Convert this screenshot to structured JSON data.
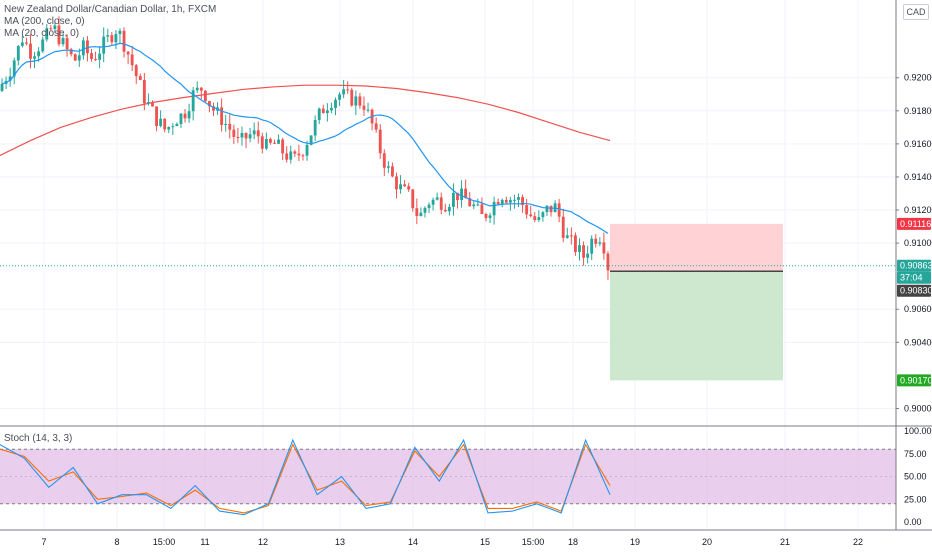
{
  "header": {
    "symbol_title": "New Zealand Dollar/Canadian Dollar, 1h, FXCM",
    "ma200_label": "MA (200, close, 0)",
    "ma20_label": "MA (20, close, 0)",
    "currency_button": "CAD"
  },
  "stoch": {
    "label": "Stoch (14, 3, 3)",
    "ticks": [
      "100.00",
      "75.00",
      "50.00",
      "25.00",
      "0.00"
    ]
  },
  "colors": {
    "up": "#26a69a",
    "down": "#ef5350",
    "ma200": "#ef5350",
    "ma20": "#2196f3",
    "stoch_k": "#2196f3",
    "stoch_d": "#ff6d00",
    "stoch_band": "#e1bee7",
    "stop_zone": "#ffcdd2",
    "target_zone": "#c8e6c9",
    "current_price": "#26a69a",
    "entry_price": "#444444",
    "stop_tag": "#f23645",
    "target_tag": "#22ab22"
  },
  "chart_data": {
    "type": "candlestick",
    "symbol": "NZDCAD",
    "timeframe": "1h",
    "y_ticks": [
      "0.92000",
      "0.91800",
      "0.91600",
      "0.91400",
      "0.91200",
      "0.91000",
      "0.90600",
      "0.90400",
      "0.90000"
    ],
    "x_ticks": [
      "7",
      "8",
      "15:00",
      "11",
      "12",
      "13",
      "14",
      "15",
      "15:00",
      "18",
      "19",
      "20",
      "21",
      "22"
    ],
    "price_tags": {
      "stop": "0.91116",
      "current": "0.90863",
      "countdown": "37:04",
      "entry": "0.90830",
      "target": "0.90170"
    },
    "trade": {
      "direction": "short",
      "entry": 0.9083,
      "stop_loss": 0.91116,
      "take_profit": 0.9017
    },
    "ma200_points": [
      [
        0.0,
        0.9153
      ],
      [
        0.05,
        0.9162
      ],
      [
        0.1,
        0.917
      ],
      [
        0.15,
        0.9176
      ],
      [
        0.2,
        0.9181
      ],
      [
        0.25,
        0.9185
      ],
      [
        0.3,
        0.9188
      ],
      [
        0.35,
        0.91905
      ],
      [
        0.4,
        0.9193
      ],
      [
        0.45,
        0.91945
      ],
      [
        0.5,
        0.91955
      ],
      [
        0.55,
        0.91955
      ],
      [
        0.6,
        0.9195
      ],
      [
        0.65,
        0.91935
      ],
      [
        0.7,
        0.9191
      ],
      [
        0.75,
        0.9188
      ],
      [
        0.8,
        0.9184
      ],
      [
        0.85,
        0.9179
      ],
      [
        0.9,
        0.9173
      ],
      [
        0.95,
        0.9167
      ],
      [
        1.0,
        0.9162
      ]
    ],
    "price_path": [
      [
        0.0,
        0.9192
      ],
      [
        0.02,
        0.9205
      ],
      [
        0.04,
        0.9224
      ],
      [
        0.055,
        0.9215
      ],
      [
        0.075,
        0.9222
      ],
      [
        0.09,
        0.9231
      ],
      [
        0.11,
        0.9218
      ],
      [
        0.125,
        0.921
      ],
      [
        0.14,
        0.9218
      ],
      [
        0.155,
        0.9211
      ],
      [
        0.175,
        0.9221
      ],
      [
        0.195,
        0.923
      ],
      [
        0.21,
        0.9218
      ],
      [
        0.225,
        0.9203
      ],
      [
        0.24,
        0.9188
      ],
      [
        0.26,
        0.9175
      ],
      [
        0.275,
        0.9168
      ],
      [
        0.29,
        0.9175
      ],
      [
        0.305,
        0.9178
      ],
      [
        0.32,
        0.919
      ],
      [
        0.335,
        0.9194
      ],
      [
        0.35,
        0.9182
      ],
      [
        0.365,
        0.9176
      ],
      [
        0.38,
        0.9169
      ],
      [
        0.395,
        0.916
      ],
      [
        0.41,
        0.9165
      ],
      [
        0.425,
        0.9166
      ],
      [
        0.44,
        0.9158
      ],
      [
        0.455,
        0.916
      ],
      [
        0.47,
        0.9154
      ],
      [
        0.485,
        0.915
      ],
      [
        0.5,
        0.9157
      ],
      [
        0.515,
        0.9168
      ],
      [
        0.53,
        0.918
      ],
      [
        0.545,
        0.9186
      ],
      [
        0.56,
        0.919
      ],
      [
        0.575,
        0.9188
      ],
      [
        0.59,
        0.9186
      ],
      [
        0.6,
        0.9184
      ],
      [
        0.615,
        0.917
      ],
      [
        0.63,
        0.9152
      ],
      [
        0.645,
        0.914
      ],
      [
        0.66,
        0.9133
      ],
      [
        0.675,
        0.9128
      ],
      [
        0.69,
        0.9115
      ],
      [
        0.705,
        0.9125
      ],
      [
        0.72,
        0.9126
      ],
      [
        0.735,
        0.9124
      ],
      [
        0.75,
        0.913
      ],
      [
        0.765,
        0.9127
      ],
      [
        0.78,
        0.9122
      ],
      [
        0.795,
        0.9115
      ],
      [
        0.81,
        0.9123
      ],
      [
        0.825,
        0.913
      ],
      [
        0.84,
        0.9127
      ],
      [
        0.855,
        0.9126
      ],
      [
        0.87,
        0.9118
      ],
      [
        0.885,
        0.9112
      ],
      [
        0.9,
        0.912
      ],
      [
        0.915,
        0.9122
      ],
      [
        0.93,
        0.9104
      ],
      [
        0.945,
        0.9098
      ],
      [
        0.96,
        0.9092
      ],
      [
        0.975,
        0.9103
      ],
      [
        0.99,
        0.9105
      ],
      [
        1.0,
        0.9086
      ]
    ],
    "stoch_k": [
      [
        0.0,
        85
      ],
      [
        0.04,
        70
      ],
      [
        0.08,
        38
      ],
      [
        0.12,
        60
      ],
      [
        0.16,
        20
      ],
      [
        0.2,
        30
      ],
      [
        0.24,
        30
      ],
      [
        0.28,
        15
      ],
      [
        0.32,
        40
      ],
      [
        0.36,
        12
      ],
      [
        0.4,
        8
      ],
      [
        0.44,
        20
      ],
      [
        0.48,
        90
      ],
      [
        0.52,
        30
      ],
      [
        0.56,
        50
      ],
      [
        0.6,
        15
      ],
      [
        0.64,
        20
      ],
      [
        0.68,
        82
      ],
      [
        0.72,
        45
      ],
      [
        0.76,
        90
      ],
      [
        0.8,
        10
      ],
      [
        0.84,
        12
      ],
      [
        0.88,
        20
      ],
      [
        0.92,
        10
      ],
      [
        0.96,
        90
      ],
      [
        1.0,
        30
      ]
    ],
    "stoch_d": [
      [
        0.0,
        80
      ],
      [
        0.04,
        72
      ],
      [
        0.08,
        45
      ],
      [
        0.12,
        55
      ],
      [
        0.16,
        25
      ],
      [
        0.2,
        28
      ],
      [
        0.24,
        32
      ],
      [
        0.28,
        18
      ],
      [
        0.32,
        35
      ],
      [
        0.36,
        15
      ],
      [
        0.4,
        10
      ],
      [
        0.44,
        18
      ],
      [
        0.48,
        85
      ],
      [
        0.52,
        35
      ],
      [
        0.56,
        45
      ],
      [
        0.6,
        18
      ],
      [
        0.64,
        22
      ],
      [
        0.68,
        78
      ],
      [
        0.72,
        50
      ],
      [
        0.76,
        85
      ],
      [
        0.8,
        15
      ],
      [
        0.84,
        15
      ],
      [
        0.88,
        22
      ],
      [
        0.92,
        12
      ],
      [
        0.96,
        85
      ],
      [
        1.0,
        40
      ]
    ]
  }
}
